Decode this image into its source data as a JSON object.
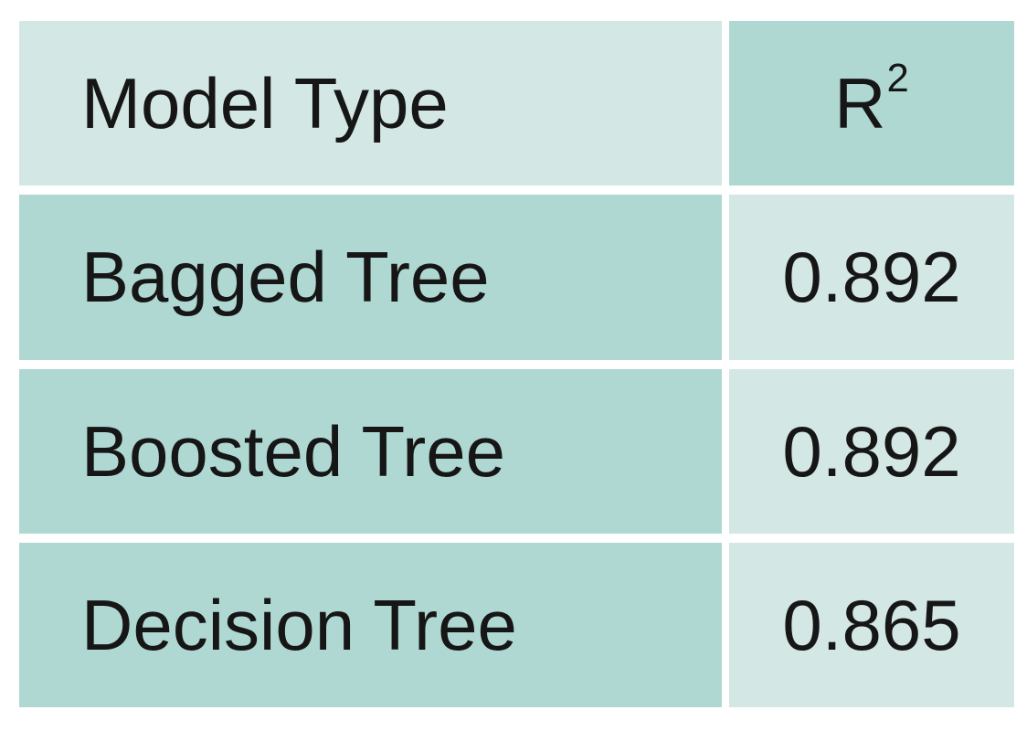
{
  "table": {
    "header": {
      "model_type_label": "Model Type",
      "r2_base": "R",
      "r2_sup": "2"
    },
    "rows": [
      {
        "model": "Bagged Tree",
        "r2": "0.892"
      },
      {
        "model": "Boosted Tree",
        "r2": "0.892"
      },
      {
        "model": "Decision Tree",
        "r2": "0.865"
      }
    ]
  },
  "colors": {
    "background": "#ffffff",
    "cell_light": "#d3e7e4",
    "cell_dark": "#b0d8d3",
    "text": "#161616"
  },
  "chart_data": {
    "type": "table",
    "title": "",
    "columns": [
      "Model Type",
      "R²"
    ],
    "rows": [
      [
        "Bagged Tree",
        0.892
      ],
      [
        "Boosted Tree",
        0.892
      ],
      [
        "Decision Tree",
        0.865
      ]
    ]
  }
}
